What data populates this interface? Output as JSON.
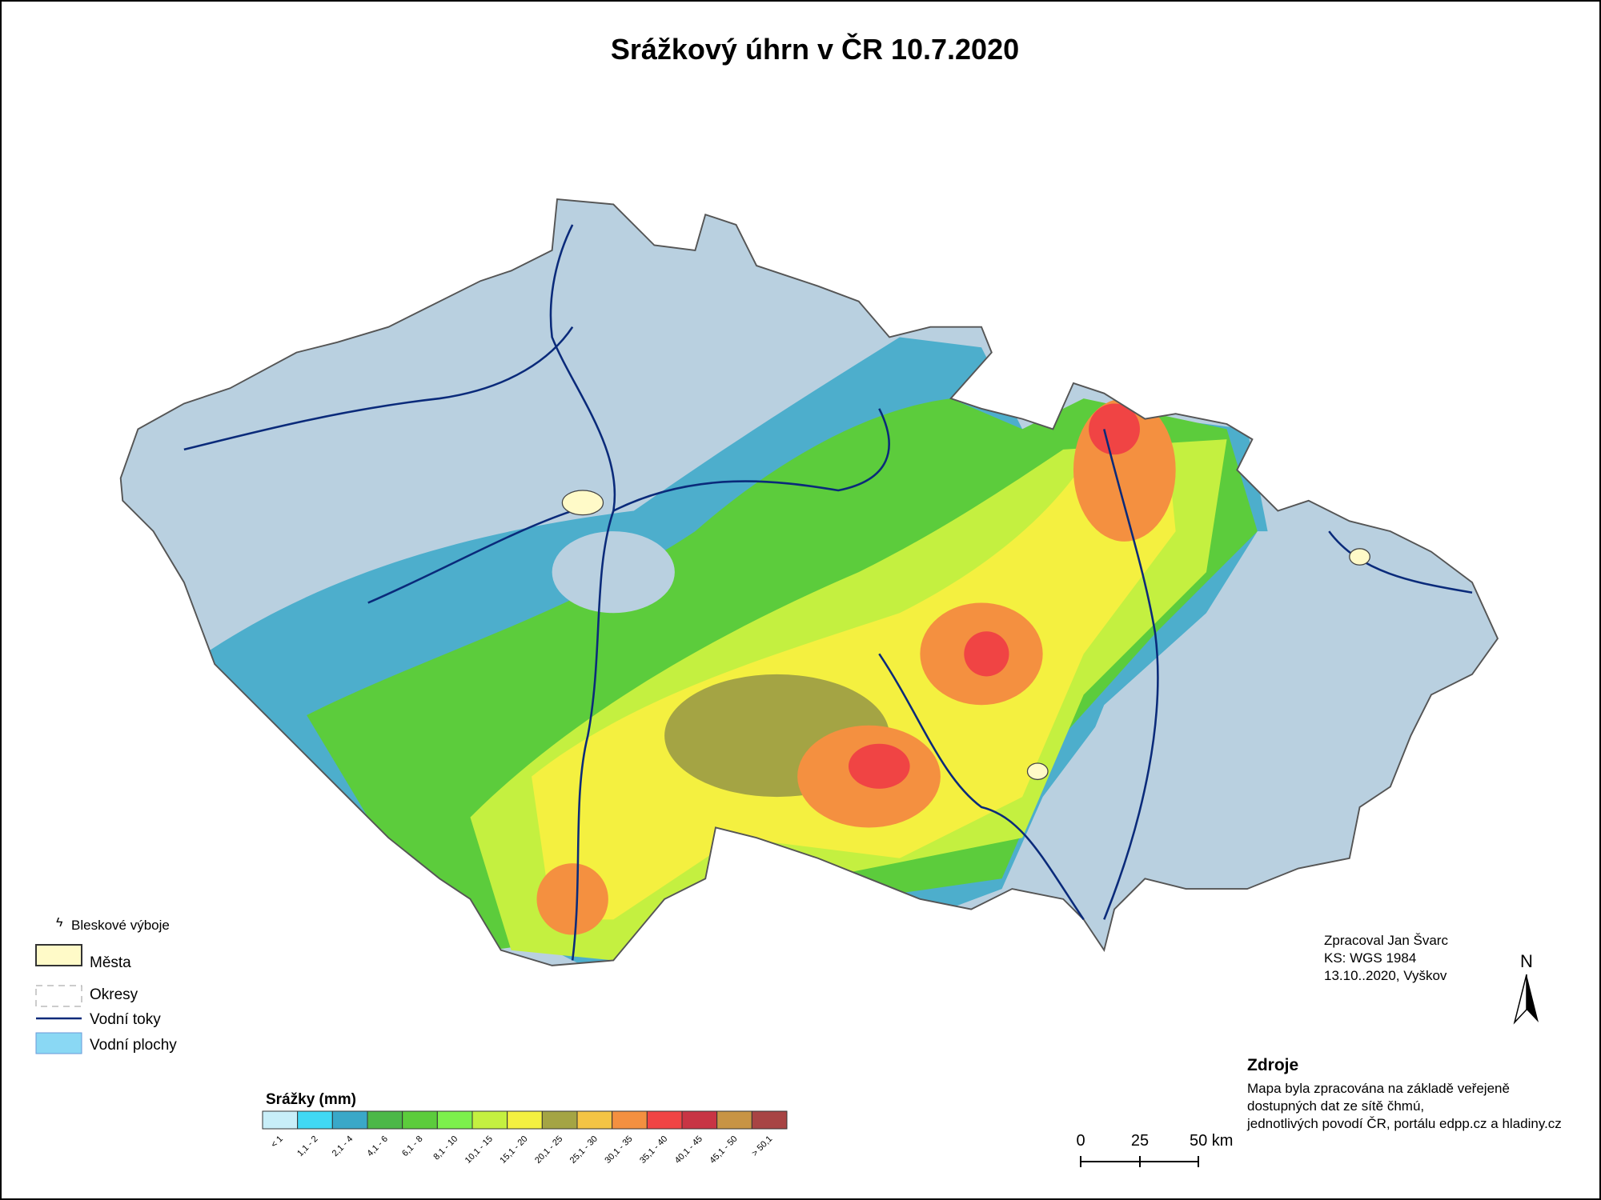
{
  "title": "Srážkový úhrn v ČR 10.7.2020",
  "map_legend": {
    "items": [
      "Bleskové výboje",
      "Města",
      "Okresy",
      "Vodní toky",
      "Vodní plochy"
    ]
  },
  "precip_legend": {
    "title": "Srážky (mm)",
    "classes": [
      {
        "label": "< 1",
        "color": "#c8eef8"
      },
      {
        "label": "1,1 - 2",
        "color": "#40d8f4"
      },
      {
        "label": "2,1 - 4",
        "color": "#3aa8c8"
      },
      {
        "label": "4,1 - 6",
        "color": "#4cb848"
      },
      {
        "label": "6,1 - 8",
        "color": "#5ccc3c"
      },
      {
        "label": "8,1 - 10",
        "color": "#7cf04c"
      },
      {
        "label": "10,1 - 15",
        "color": "#c4f040"
      },
      {
        "label": "15,1 - 20",
        "color": "#f4f040"
      },
      {
        "label": "20,1 - 25",
        "color": "#a4a444"
      },
      {
        "label": "25,1 - 30",
        "color": "#f4c444"
      },
      {
        "label": "30,1 - 35",
        "color": "#f49040"
      },
      {
        "label": "35,1 - 40",
        "color": "#f04444"
      },
      {
        "label": "40,1 - 45",
        "color": "#c83444"
      },
      {
        "label": "45,1 - 50",
        "color": "#c89444"
      },
      {
        "label": "> 50,1",
        "color": "#a84444"
      }
    ]
  },
  "credits": {
    "lines": [
      "Zpracoval Jan Švarc",
      "KS: WGS 1984",
      "13.10..2020, Vyškov"
    ]
  },
  "sources": {
    "title": "Zdroje",
    "lines": [
      "Mapa byla zpracována na základě veřejeně",
      "dostupných dat ze sítě čhmú,",
      "jednotlivých povodí ČR, portálu edpp.cz a hladiny.cz"
    ]
  },
  "scale_bar": {
    "labels": [
      "0",
      "25",
      "50 km"
    ]
  },
  "north": "N"
}
